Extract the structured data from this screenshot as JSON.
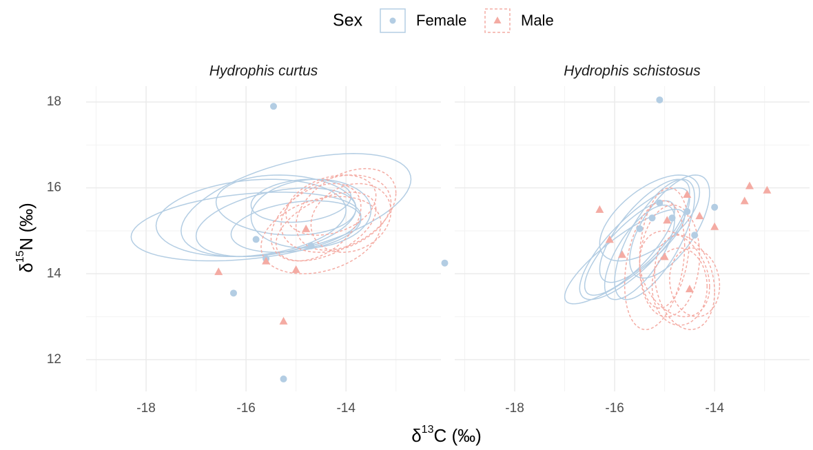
{
  "legend": {
    "title": "Sex"
  },
  "x_label": {
    "prefix": "δ",
    "sup": "13",
    "suffix": "C (‰)"
  },
  "y_label": {
    "prefix": "δ",
    "sup": "15",
    "suffix": "N (‰)"
  },
  "chart_data": [
    {
      "type": "scatter",
      "title": "Hydrophis curtus",
      "xlim": [
        -19.2,
        -12.1
      ],
      "ylim": [
        11.26,
        18.37
      ],
      "xticks": [
        -18,
        -16,
        -14
      ],
      "yticks": [
        12,
        14,
        16,
        18
      ],
      "minor_xticks": [
        -19,
        -17,
        -15,
        -13
      ],
      "minor_yticks": [
        13,
        15,
        17
      ],
      "grid": true,
      "series": [
        {
          "name": "Female",
          "color": "#b3cde3",
          "marker": "circle",
          "x": [
            -15.45,
            -15.8,
            -15.6,
            -14.7,
            -16.25,
            -15.25
          ],
          "values": [
            17.9,
            14.8,
            14.35,
            14.65,
            13.55,
            11.55
          ],
          "ellipses": [
            [
              -15.0,
              15.6,
              2.3,
              1.2,
              0.5
            ],
            [
              -15.9,
              15.3,
              1.9,
              0.9,
              0.2
            ],
            [
              -15.4,
              15.2,
              1.6,
              0.8,
              0.4
            ],
            [
              -14.7,
              15.4,
              1.2,
              0.8,
              0.1
            ],
            [
              -15.2,
              15.6,
              1.4,
              0.7,
              -0.1
            ],
            [
              -15.0,
              15.1,
              1.3,
              0.6,
              0.3
            ],
            [
              -14.9,
              15.7,
              1.0,
              0.5,
              0.2
            ],
            [
              -16.0,
              15.1,
              2.3,
              0.8,
              0.3
            ]
          ]
        },
        {
          "name": "Male",
          "color": "#f4aba3",
          "marker": "triangle",
          "x": [
            -16.55,
            -14.8,
            -15.0,
            -15.25,
            -15.6
          ],
          "values": [
            14.05,
            15.05,
            14.1,
            12.9,
            14.3
          ],
          "ellipses": [
            [
              -14.2,
              15.4,
              1.1,
              0.9,
              0.3
            ],
            [
              -14.0,
              15.5,
              1.0,
              0.95,
              0.4
            ],
            [
              -14.4,
              15.1,
              1.0,
              0.8,
              0.5
            ],
            [
              -14.5,
              14.9,
              1.2,
              0.9,
              0.3
            ],
            [
              -13.9,
              15.3,
              0.8,
              0.8,
              0.2
            ],
            [
              -14.3,
              15.6,
              0.9,
              0.7,
              0.3
            ],
            [
              -14.6,
              15.2,
              0.9,
              0.9,
              0.4
            ]
          ]
        }
      ]
    },
    {
      "type": "scatter",
      "title": "Hydrophis schistosus",
      "xlim": [
        -19.2,
        -12.1
      ],
      "ylim": [
        11.26,
        18.37
      ],
      "xticks": [
        -18,
        -16,
        -14
      ],
      "yticks": [
        12,
        14,
        16,
        18
      ],
      "minor_xticks": [
        -19,
        -17,
        -15,
        -13
      ],
      "minor_yticks": [
        13,
        15,
        17
      ],
      "grid": true,
      "series": [
        {
          "name": "Female",
          "color": "#b3cde3",
          "marker": "circle",
          "x": [
            -19.4,
            -15.1,
            -15.1,
            -15.25,
            -15.5,
            -14.55,
            -14.0,
            -14.4,
            -14.85
          ],
          "values": [
            14.25,
            18.05,
            15.65,
            15.3,
            15.05,
            15.45,
            15.55,
            14.9,
            15.3
          ],
          "ellipses": [
            [
              -15.6,
              14.7,
              1.1,
              1.3,
              0.8
            ],
            [
              -15.4,
              15.0,
              0.9,
              1.2,
              0.75
            ],
            [
              -15.2,
              14.8,
              0.8,
              1.4,
              0.7
            ],
            [
              -15.7,
              14.6,
              0.9,
              1.1,
              0.8
            ],
            [
              -15.3,
              15.3,
              1.0,
              1.0,
              0.6
            ],
            [
              -15.5,
              14.5,
              0.7,
              1.1,
              0.7
            ],
            [
              -14.9,
              15.1,
              0.8,
              1.2,
              0.65
            ],
            [
              -15.8,
              14.4,
              1.2,
              1.1,
              0.85
            ]
          ]
        },
        {
          "name": "Male",
          "color": "#f4aba3",
          "marker": "triangle",
          "x": [
            -16.3,
            -16.1,
            -15.85,
            -14.55,
            -14.3,
            -14.0,
            -13.4,
            -13.3,
            -12.95,
            -14.95,
            -15.0,
            -14.5
          ],
          "values": [
            15.5,
            14.8,
            14.45,
            15.85,
            15.35,
            15.1,
            15.7,
            16.05,
            15.95,
            15.25,
            14.4,
            13.65
          ],
          "ellipses": [
            [
              -14.6,
              13.8,
              0.6,
              1.1,
              -0.2
            ],
            [
              -14.9,
              14.3,
              0.6,
              1.3,
              0.1
            ],
            [
              -14.7,
              13.7,
              0.55,
              0.9,
              0.0
            ],
            [
              -15.0,
              14.6,
              0.5,
              1.4,
              0.2
            ],
            [
              -14.4,
              13.8,
              0.5,
              0.8,
              -0.1
            ],
            [
              -14.8,
              14.0,
              0.7,
              1.0,
              -0.3
            ],
            [
              -15.2,
              14.2,
              0.6,
              1.5,
              0.3
            ]
          ]
        }
      ]
    }
  ]
}
